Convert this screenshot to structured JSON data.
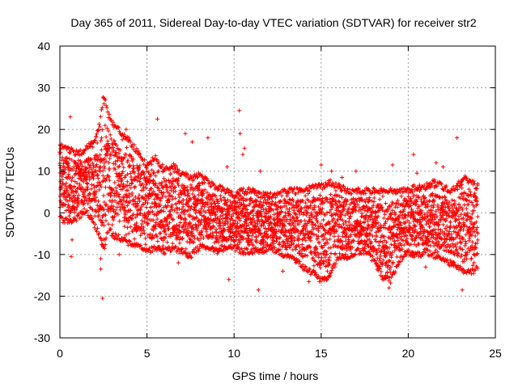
{
  "chart_data": {
    "type": "scatter",
    "title": "Day 365 of 2011, Sidereal Day-to-day VTEC variation (SDTVAR) for receiver str2",
    "xlabel": "GPS time / hours",
    "ylabel": "SDTVAR / TECUs",
    "xlim": [
      0,
      25
    ],
    "ylim": [
      -30,
      40
    ],
    "xticks": [
      0,
      5,
      10,
      15,
      20,
      25
    ],
    "xtick_labels": [
      "0",
      "5",
      "10",
      "15",
      "20",
      "25"
    ],
    "yticks": [
      -30,
      -20,
      -10,
      0,
      10,
      20,
      30,
      40
    ],
    "ytick_labels": [
      "-30",
      "-20",
      "-10",
      "0",
      "10",
      "20",
      "30",
      "40"
    ],
    "grid": true,
    "marker": "+",
    "series": [
      {
        "name": "SDTVAR str2",
        "color": "#ff0000",
        "envelope": {
          "x": [
            0,
            0.5,
            1,
            1.5,
            2,
            2.3,
            2.5,
            2.8,
            3,
            3.5,
            4,
            4.5,
            5,
            5.5,
            6,
            6.5,
            7,
            7.5,
            8,
            8.5,
            9,
            9.5,
            10,
            10.5,
            11,
            11.5,
            12,
            12.5,
            13,
            13.5,
            14,
            14.5,
            15,
            15.5,
            16,
            16.5,
            17,
            17.5,
            18,
            18.5,
            19,
            19.5,
            20,
            20.5,
            21,
            21.5,
            22,
            22.5,
            23,
            23.3,
            23.6,
            24
          ],
          "upper": [
            17,
            16,
            15,
            16,
            18,
            22,
            29,
            24,
            22,
            20,
            18,
            15,
            12,
            14,
            11,
            12,
            10,
            9,
            10,
            8,
            7,
            6,
            5,
            6,
            6,
            5,
            5,
            5,
            6,
            6,
            6,
            7,
            7,
            8,
            7,
            6,
            6,
            6,
            6,
            6,
            6,
            6,
            6,
            7,
            7,
            8,
            7,
            6,
            8,
            9,
            8,
            7
          ],
          "lower": [
            -2,
            -3,
            -2,
            0,
            -4,
            -6,
            -10,
            -4,
            -6,
            -7,
            -8,
            -9,
            -10,
            -9,
            -10,
            -9,
            -10,
            -11,
            -9,
            -9,
            -10,
            -9,
            -9,
            -10,
            -10,
            -10,
            -9,
            -10,
            -11,
            -12,
            -14,
            -15,
            -17,
            -16,
            -11,
            -12,
            -10,
            -10,
            -12,
            -16,
            -17,
            -12,
            -10,
            -11,
            -10,
            -11,
            -12,
            -13,
            -14,
            -15,
            -15,
            -14
          ]
        },
        "outliers": [
          {
            "x": 0.6,
            "y": 23
          },
          {
            "x": 0.7,
            "y": -6.5
          },
          {
            "x": 0.65,
            "y": -10.5
          },
          {
            "x": 2.35,
            "y": -11
          },
          {
            "x": 2.35,
            "y": -13.5
          },
          {
            "x": 2.45,
            "y": -20.5
          },
          {
            "x": 2.6,
            "y": -6.5
          },
          {
            "x": 3.4,
            "y": -10
          },
          {
            "x": 3.8,
            "y": 20
          },
          {
            "x": 5.6,
            "y": 22.5
          },
          {
            "x": 7.2,
            "y": 19
          },
          {
            "x": 7.6,
            "y": 17
          },
          {
            "x": 8.5,
            "y": 18
          },
          {
            "x": 9.6,
            "y": 11
          },
          {
            "x": 9.7,
            "y": -16
          },
          {
            "x": 10.3,
            "y": 24.5
          },
          {
            "x": 10.35,
            "y": 19
          },
          {
            "x": 10.6,
            "y": 15.5
          },
          {
            "x": 10.5,
            "y": 14
          },
          {
            "x": 11.5,
            "y": 10
          },
          {
            "x": 11.4,
            "y": -18.5
          },
          {
            "x": 15.0,
            "y": 11.5
          },
          {
            "x": 15.6,
            "y": 10
          },
          {
            "x": 16.2,
            "y": 8.5
          },
          {
            "x": 17.0,
            "y": 10
          },
          {
            "x": 18.7,
            "y": -15
          },
          {
            "x": 18.9,
            "y": -18
          },
          {
            "x": 19.0,
            "y": -13
          },
          {
            "x": 19.1,
            "y": 11.5
          },
          {
            "x": 20.3,
            "y": 14
          },
          {
            "x": 20.5,
            "y": 9.5
          },
          {
            "x": 21.6,
            "y": 12
          },
          {
            "x": 22.0,
            "y": 11
          },
          {
            "x": 22.8,
            "y": 18
          },
          {
            "x": 23.1,
            "y": -18.5
          },
          {
            "x": 21.0,
            "y": -13
          },
          {
            "x": 6.8,
            "y": -12
          },
          {
            "x": 12.8,
            "y": -14
          },
          {
            "x": 14.3,
            "y": -16.5
          }
        ]
      }
    ]
  }
}
